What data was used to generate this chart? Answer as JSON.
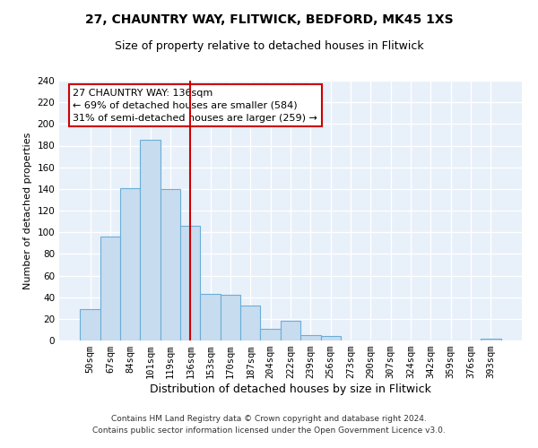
{
  "title": "27, CHAUNTRY WAY, FLITWICK, BEDFORD, MK45 1XS",
  "subtitle": "Size of property relative to detached houses in Flitwick",
  "xlabel": "Distribution of detached houses by size in Flitwick",
  "ylabel": "Number of detached properties",
  "bar_labels": [
    "50sqm",
    "67sqm",
    "84sqm",
    "101sqm",
    "119sqm",
    "136sqm",
    "153sqm",
    "170sqm",
    "187sqm",
    "204sqm",
    "222sqm",
    "239sqm",
    "256sqm",
    "273sqm",
    "290sqm",
    "307sqm",
    "324sqm",
    "342sqm",
    "359sqm",
    "376sqm",
    "393sqm"
  ],
  "bar_heights": [
    29,
    96,
    141,
    185,
    140,
    106,
    43,
    42,
    32,
    11,
    18,
    5,
    4,
    0,
    0,
    0,
    0,
    0,
    0,
    0,
    2
  ],
  "bar_color": "#c8dcf0",
  "bar_edge_color": "#6aaed6",
  "highlight_bar_index": 5,
  "highlight_line_color": "#cc0000",
  "ylim": [
    0,
    240
  ],
  "yticks": [
    0,
    20,
    40,
    60,
    80,
    100,
    120,
    140,
    160,
    180,
    200,
    220,
    240
  ],
  "annotation_title": "27 CHAUNTRY WAY: 136sqm",
  "annotation_line1": "← 69% of detached houses are smaller (584)",
  "annotation_line2": "31% of semi-detached houses are larger (259) →",
  "annotation_box_color": "#ffffff",
  "annotation_box_edge_color": "#cc0000",
  "footer_line1": "Contains HM Land Registry data © Crown copyright and database right 2024.",
  "footer_line2": "Contains public sector information licensed under the Open Government Licence v3.0.",
  "fig_bg_color": "#ffffff",
  "plot_bg_color": "#e8f0fa",
  "grid_color": "#ffffff",
  "title_fontsize": 10,
  "subtitle_fontsize": 9,
  "xlabel_fontsize": 9,
  "ylabel_fontsize": 8,
  "tick_fontsize": 7.5,
  "footer_fontsize": 6.5
}
